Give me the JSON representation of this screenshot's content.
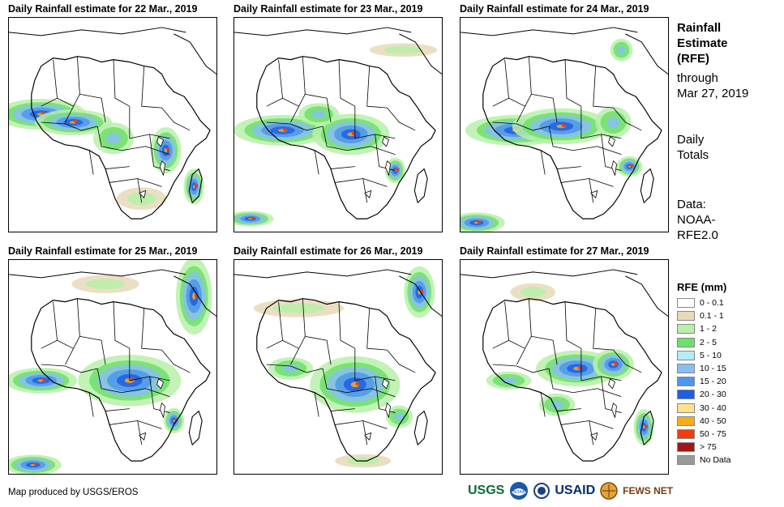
{
  "panels": [
    {
      "title": "Daily Rainfall estimate for 22 Mar., 2019"
    },
    {
      "title": "Daily Rainfall estimate for 23 Mar., 2019"
    },
    {
      "title": "Daily Rainfall estimate for 24 Mar., 2019"
    },
    {
      "title": "Daily Rainfall estimate for 25 Mar., 2019"
    },
    {
      "title": "Daily Rainfall estimate for 26 Mar., 2019"
    },
    {
      "title": "Daily Rainfall estimate for 27 Mar., 2019"
    }
  ],
  "side": {
    "heading_line1": "Rainfall",
    "heading_line2": "Estimate",
    "heading_line3": "(RFE)",
    "through_line1": "through",
    "through_line2": "Mar 27, 2019",
    "totals_line1": "Daily",
    "totals_line2": "Totals",
    "data_line1": "Data:",
    "data_line2": "NOAA-",
    "data_line3": "RFE2.0"
  },
  "legend": {
    "title": "RFE (mm)",
    "items": [
      {
        "label": "0 - 0.1",
        "color": "#ffffff"
      },
      {
        "label": "0.1 - 1",
        "color": "#e8d9b9"
      },
      {
        "label": "1 - 2",
        "color": "#b7f0a8"
      },
      {
        "label": "2 - 5",
        "color": "#6fe06a"
      },
      {
        "label": "5 - 10",
        "color": "#b4ecf4"
      },
      {
        "label": "10 - 15",
        "color": "#88bff0"
      },
      {
        "label": "15 - 20",
        "color": "#4f96ea"
      },
      {
        "label": "20 - 30",
        "color": "#1f5fe0"
      },
      {
        "label": "30 - 40",
        "color": "#fde48a"
      },
      {
        "label": "40 - 50",
        "color": "#fbab18"
      },
      {
        "label": "50 - 75",
        "color": "#f03c10"
      },
      {
        "label": "> 75",
        "color": "#a31515"
      },
      {
        "label": "No Data",
        "color": "#999999"
      }
    ]
  },
  "footer": {
    "credit": "Map produced by USGS/EROS",
    "logos": [
      "USGS",
      "NOAA",
      "USAID",
      "FEWS NET"
    ]
  },
  "map": {
    "coast_color": "#000000",
    "colors": {
      "light": "#e8d9b9",
      "green1": "#b7f0a8",
      "green2": "#6fe06a",
      "blue1": "#88bff0",
      "blue2": "#4f96ea",
      "blue3": "#1f5fe0",
      "orange": "#fbab18",
      "red": "#f03c10"
    }
  }
}
